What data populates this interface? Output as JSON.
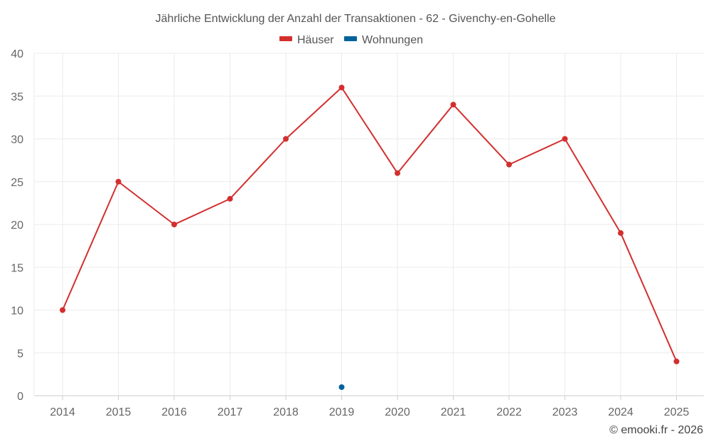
{
  "chart_data": {
    "type": "line",
    "title": "Jährliche Entwicklung der Anzahl der Transaktionen - 62 - Givenchy-en-Gohelle",
    "categories": [
      "2014",
      "2015",
      "2016",
      "2017",
      "2018",
      "2019",
      "2020",
      "2021",
      "2022",
      "2023",
      "2024",
      "2025"
    ],
    "series": [
      {
        "name": "Häuser",
        "color": "#d32f2f",
        "values": [
          10,
          25,
          20,
          23,
          30,
          36,
          26,
          34,
          27,
          30,
          19,
          4
        ]
      },
      {
        "name": "Wohnungen",
        "color": "#01629c",
        "values": [
          null,
          null,
          null,
          null,
          null,
          1,
          null,
          null,
          null,
          null,
          null,
          null
        ]
      }
    ],
    "ylim": [
      0,
      40
    ],
    "yticks": [
      0,
      5,
      10,
      15,
      20,
      25,
      30,
      35,
      40
    ],
    "xlabel": "",
    "ylabel": "",
    "grid": true,
    "legend_position": "top-center"
  },
  "credit": "© emooki.fr - 2026"
}
